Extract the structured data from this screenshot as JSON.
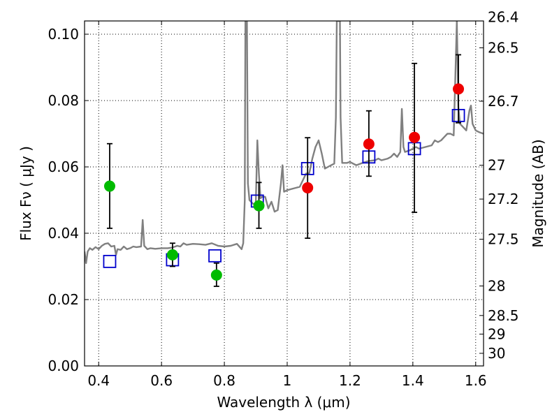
{
  "chart_data": {
    "type": "scatter",
    "title": "",
    "xlabel": "Wavelength  λ (μm)",
    "ylabel": "Flux  Fν  ( μJy )",
    "y2label": "Magnitude (AB)",
    "xlim": [
      0.355,
      1.625
    ],
    "ylim": [
      0.0,
      0.104
    ],
    "grid": true,
    "x_ticks": [
      0.4,
      0.6,
      0.8,
      1.0,
      1.2,
      1.4,
      1.6
    ],
    "x_tick_labels": [
      "0.4",
      "0.6",
      "0.8",
      "1",
      "1.2",
      "1.4",
      "1.6"
    ],
    "y_ticks": [
      0.0,
      0.02,
      0.04,
      0.06,
      0.08,
      0.1
    ],
    "y_tick_labels": [
      "0.00",
      "0.02",
      "0.04",
      "0.06",
      "0.08",
      "0.10"
    ],
    "y2_ticks": [
      {
        "label": "26.4",
        "flux": 0.1052
      },
      {
        "label": "26.5",
        "flux": 0.0959
      },
      {
        "label": "26.7",
        "flux": 0.0798
      },
      {
        "label": "27",
        "flux": 0.0605
      },
      {
        "label": "27.2",
        "flux": 0.0503
      },
      {
        "label": "27.5",
        "flux": 0.0382
      },
      {
        "label": "28",
        "flux": 0.0241
      },
      {
        "label": "28.5",
        "flux": 0.0152
      },
      {
        "label": "29",
        "flux": 0.0096
      },
      {
        "label": "30",
        "flux": 0.0038
      }
    ],
    "series": [
      {
        "kind": "line",
        "color": "#808080",
        "points": [
          [
            0.355,
            0.0345
          ],
          [
            0.36,
            0.031
          ],
          [
            0.365,
            0.0345
          ],
          [
            0.372,
            0.0355
          ],
          [
            0.38,
            0.035
          ],
          [
            0.39,
            0.0358
          ],
          [
            0.4,
            0.0352
          ],
          [
            0.41,
            0.0362
          ],
          [
            0.42,
            0.0368
          ],
          [
            0.43,
            0.037
          ],
          [
            0.44,
            0.036
          ],
          [
            0.45,
            0.0362
          ],
          [
            0.455,
            0.0335
          ],
          [
            0.46,
            0.0352
          ],
          [
            0.47,
            0.035
          ],
          [
            0.48,
            0.036
          ],
          [
            0.49,
            0.0352
          ],
          [
            0.5,
            0.0355
          ],
          [
            0.51,
            0.036
          ],
          [
            0.52,
            0.0358
          ],
          [
            0.535,
            0.036
          ],
          [
            0.54,
            0.044
          ],
          [
            0.545,
            0.0362
          ],
          [
            0.555,
            0.0352
          ],
          [
            0.565,
            0.0355
          ],
          [
            0.58,
            0.0353
          ],
          [
            0.6,
            0.0355
          ],
          [
            0.62,
            0.0355
          ],
          [
            0.635,
            0.0357
          ],
          [
            0.65,
            0.0362
          ],
          [
            0.66,
            0.036
          ],
          [
            0.67,
            0.037
          ],
          [
            0.68,
            0.0365
          ],
          [
            0.7,
            0.0368
          ],
          [
            0.72,
            0.0367
          ],
          [
            0.74,
            0.0365
          ],
          [
            0.76,
            0.037
          ],
          [
            0.78,
            0.0362
          ],
          [
            0.8,
            0.036
          ],
          [
            0.82,
            0.0362
          ],
          [
            0.84,
            0.0368
          ],
          [
            0.855,
            0.0352
          ],
          [
            0.86,
            0.037
          ],
          [
            0.865,
            0.05
          ],
          [
            0.867,
            0.104
          ],
          [
            0.872,
            0.104
          ],
          [
            0.875,
            0.055
          ],
          [
            0.88,
            0.05
          ],
          [
            0.89,
            0.049
          ],
          [
            0.9,
            0.0485
          ],
          [
            0.905,
            0.068
          ],
          [
            0.91,
            0.058
          ],
          [
            0.915,
            0.0505
          ],
          [
            0.92,
            0.051
          ],
          [
            0.93,
            0.051
          ],
          [
            0.94,
            0.0475
          ],
          [
            0.95,
            0.0495
          ],
          [
            0.96,
            0.0465
          ],
          [
            0.97,
            0.047
          ],
          [
            0.98,
            0.055
          ],
          [
            0.985,
            0.0605
          ],
          [
            0.99,
            0.0525
          ],
          [
            1.0,
            0.053
          ],
          [
            1.02,
            0.0535
          ],
          [
            1.04,
            0.054
          ],
          [
            1.06,
            0.058
          ],
          [
            1.07,
            0.058
          ],
          [
            1.08,
            0.0625
          ],
          [
            1.09,
            0.066
          ],
          [
            1.1,
            0.068
          ],
          [
            1.11,
            0.064
          ],
          [
            1.12,
            0.0595
          ],
          [
            1.13,
            0.06
          ],
          [
            1.14,
            0.0605
          ],
          [
            1.15,
            0.061
          ],
          [
            1.155,
            0.075
          ],
          [
            1.158,
            0.104
          ],
          [
            1.168,
            0.104
          ],
          [
            1.17,
            0.075
          ],
          [
            1.175,
            0.0612
          ],
          [
            1.19,
            0.0612
          ],
          [
            1.2,
            0.0615
          ],
          [
            1.21,
            0.061
          ],
          [
            1.22,
            0.0605
          ],
          [
            1.24,
            0.0612
          ],
          [
            1.26,
            0.0618
          ],
          [
            1.28,
            0.062
          ],
          [
            1.29,
            0.0625
          ],
          [
            1.3,
            0.062
          ],
          [
            1.32,
            0.0625
          ],
          [
            1.33,
            0.063
          ],
          [
            1.34,
            0.064
          ],
          [
            1.35,
            0.063
          ],
          [
            1.36,
            0.0645
          ],
          [
            1.365,
            0.0775
          ],
          [
            1.37,
            0.066
          ],
          [
            1.375,
            0.0645
          ],
          [
            1.39,
            0.065
          ],
          [
            1.41,
            0.066
          ],
          [
            1.42,
            0.0655
          ],
          [
            1.44,
            0.066
          ],
          [
            1.46,
            0.0665
          ],
          [
            1.47,
            0.068
          ],
          [
            1.48,
            0.0675
          ],
          [
            1.49,
            0.068
          ],
          [
            1.5,
            0.069
          ],
          [
            1.51,
            0.07
          ],
          [
            1.52,
            0.07
          ],
          [
            1.53,
            0.0695
          ],
          [
            1.535,
            0.086
          ],
          [
            1.54,
            0.104
          ],
          [
            1.545,
            0.078
          ],
          [
            1.55,
            0.073
          ],
          [
            1.56,
            0.072
          ],
          [
            1.57,
            0.071
          ],
          [
            1.58,
            0.077
          ],
          [
            1.585,
            0.0785
          ],
          [
            1.59,
            0.073
          ],
          [
            1.6,
            0.071
          ],
          [
            1.61,
            0.0705
          ],
          [
            1.625,
            0.07
          ]
        ]
      },
      {
        "kind": "squares",
        "color": "#0000cc",
        "points": [
          [
            0.435,
            0.0315
          ],
          [
            0.635,
            0.032
          ],
          [
            0.77,
            0.0332
          ],
          [
            0.905,
            0.0497
          ],
          [
            1.065,
            0.0595
          ],
          [
            1.26,
            0.063
          ],
          [
            1.405,
            0.0655
          ],
          [
            1.545,
            0.0755
          ]
        ]
      },
      {
        "kind": "points",
        "color": "#00bb00",
        "points": [
          [
            0.435,
            0.0542
          ],
          [
            0.635,
            0.0335
          ],
          [
            0.775,
            0.0274
          ],
          [
            0.91,
            0.0483
          ]
        ],
        "err_low": [
          0.0415,
          0.03,
          0.024,
          0.0415
        ],
        "err_high": [
          0.067,
          0.037,
          0.031,
          0.0553
        ]
      },
      {
        "kind": "points",
        "color": "#ee0000",
        "points": [
          [
            1.065,
            0.0537
          ],
          [
            1.26,
            0.0669
          ],
          [
            1.405,
            0.0689
          ],
          [
            1.545,
            0.0835
          ]
        ],
        "err_low": [
          0.0385,
          0.0572,
          0.0463,
          0.0733
        ],
        "err_high": [
          0.0688,
          0.0769,
          0.0912,
          0.0938
        ]
      }
    ]
  }
}
